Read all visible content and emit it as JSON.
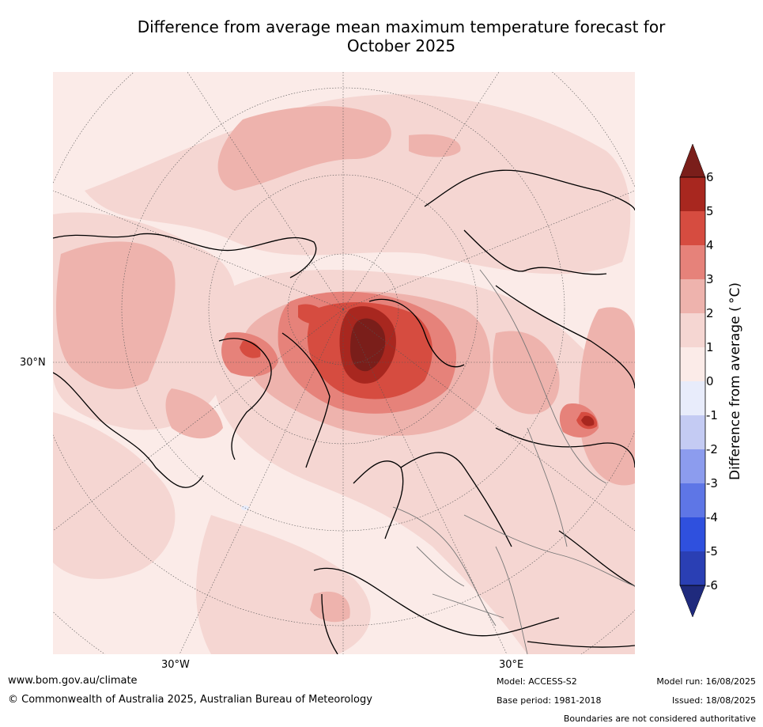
{
  "title_line1": "Difference from average mean maximum temperature forecast for",
  "title_line2": "October 2025",
  "map": {
    "lat_label": "30°N",
    "lon_labels": [
      "30°W",
      "30°E"
    ]
  },
  "colorbar": {
    "label": "Difference from average ( °C)",
    "ticks": [
      "6",
      "5",
      "4",
      "3",
      "2",
      "1",
      "0",
      "-1",
      "-2",
      "-3",
      "-4",
      "-5",
      "-6"
    ],
    "colors": {
      "over": "#7a1e1a",
      "6_5": "#a8271f",
      "5_4": "#d64c40",
      "4_3": "#e6827a",
      "3_2": "#eeb3ad",
      "2_1": "#f5d6d2",
      "1_0": "#fbebe8",
      "0_-1": "#e8ecfb",
      "-1_-2": "#c4cbf3",
      "-2_-3": "#8c9cee",
      "-3_-4": "#5e76e6",
      "-4_-5": "#2f50de",
      "-5_-6": "#2a3fb4",
      "under": "#1f2a7d"
    }
  },
  "footer": {
    "url": "www.bom.gov.au/climate",
    "copyright": "© Commonwealth of Australia 2025, Australian Bureau of Meteorology",
    "model": "Model: ACCESS-S2",
    "base_period": "Base period: 1981-2018",
    "model_run": "Model run: 16/08/2025",
    "issued": "Issued: 18/08/2025",
    "disclaimer": "Boundaries are not considered authoritative"
  }
}
